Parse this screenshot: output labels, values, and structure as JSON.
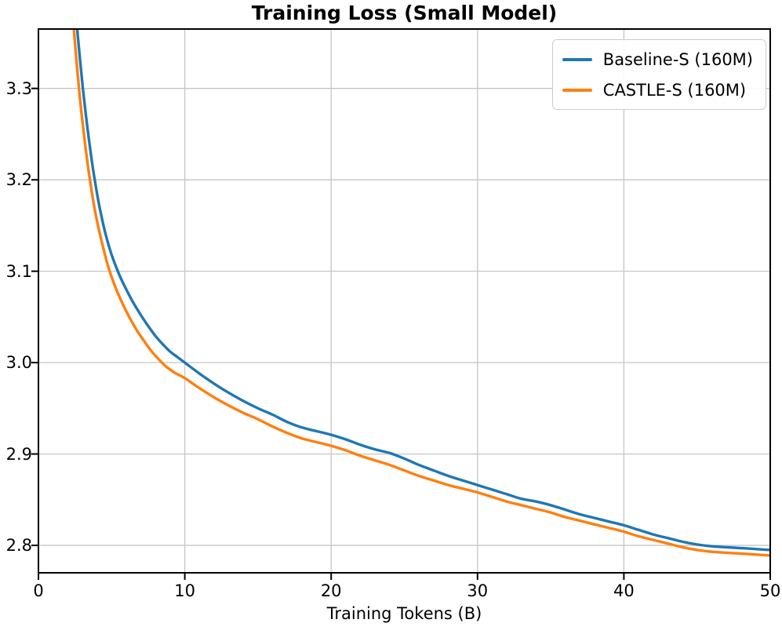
{
  "figure": {
    "title": "Training Loss (Small Model)",
    "xlabel": "Training Tokens (B)"
  },
  "chart_data": {
    "type": "line",
    "title": "Training Loss (Small Model)",
    "xlabel": "Training Tokens (B)",
    "ylabel": "",
    "xlim": [
      0,
      50
    ],
    "ylim": [
      2.77,
      3.365
    ],
    "xticks": [
      0,
      10,
      20,
      30,
      40,
      50
    ],
    "xtick_labels": [
      "0",
      "10",
      "20",
      "30",
      "40",
      "50"
    ],
    "yticks": [
      2.8,
      2.9,
      3.0,
      3.1,
      3.2,
      3.3
    ],
    "ytick_labels": [
      "2.8",
      "2.9",
      "3.0",
      "3.1",
      "3.2",
      "3.3"
    ],
    "grid": true,
    "grid_color": "#c6c6c6",
    "spine_color": "#000000",
    "legend_position": "upper right",
    "series": [
      {
        "name": "Baseline-S (160M)",
        "color": "#1f77b4",
        "x": [
          2.65,
          2.85,
          3.05,
          3.25,
          3.45,
          3.7,
          3.95,
          4.2,
          4.6,
          5.0,
          5.5,
          6.0,
          6.5,
          7.0,
          7.5,
          8.0,
          8.5,
          9.0,
          9.5,
          10,
          11,
          12,
          13,
          14,
          15,
          16,
          17,
          18,
          19,
          20,
          21,
          22,
          23,
          24,
          25,
          26,
          27,
          28,
          29,
          30,
          31,
          32,
          33,
          34,
          35,
          36,
          37,
          38,
          39,
          40,
          41,
          42,
          43,
          44,
          45,
          46,
          47,
          48,
          49,
          50
        ],
        "y": [
          3.365,
          3.33,
          3.298,
          3.27,
          3.244,
          3.215,
          3.19,
          3.168,
          3.14,
          3.118,
          3.097,
          3.08,
          3.065,
          3.052,
          3.04,
          3.029,
          3.02,
          3.012,
          3.006,
          3.0,
          2.988,
          2.977,
          2.967,
          2.958,
          2.95,
          2.943,
          2.935,
          2.929,
          2.925,
          2.921,
          2.916,
          2.91,
          2.905,
          2.901,
          2.895,
          2.888,
          2.882,
          2.876,
          2.871,
          2.866,
          2.861,
          2.856,
          2.851,
          2.848,
          2.844,
          2.839,
          2.834,
          2.83,
          2.826,
          2.822,
          2.817,
          2.812,
          2.808,
          2.804,
          2.801,
          2.799,
          2.798,
          2.797,
          2.796,
          2.795
        ]
      },
      {
        "name": "CASTLE-S (160M)",
        "color": "#ff7f0e",
        "x": [
          2.42,
          2.6,
          2.78,
          2.95,
          3.15,
          3.4,
          3.65,
          3.9,
          4.3,
          4.75,
          5.2,
          5.7,
          6.2,
          6.7,
          7.2,
          7.7,
          8.2,
          8.7,
          9.3,
          10,
          11,
          12,
          13,
          14,
          15,
          16,
          17,
          18,
          19,
          20,
          21,
          22,
          23,
          24,
          25,
          26,
          27,
          28,
          29,
          30,
          31,
          32,
          33,
          34,
          35,
          36,
          37,
          38,
          39,
          40,
          41,
          42,
          43,
          44,
          45,
          46,
          47,
          48,
          49,
          50
        ],
        "y": [
          3.365,
          3.33,
          3.298,
          3.272,
          3.244,
          3.213,
          3.186,
          3.163,
          3.134,
          3.106,
          3.085,
          3.066,
          3.05,
          3.036,
          3.024,
          3.013,
          3.004,
          2.996,
          2.989,
          2.983,
          2.972,
          2.962,
          2.953,
          2.945,
          2.938,
          2.93,
          2.923,
          2.917,
          2.913,
          2.909,
          2.904,
          2.898,
          2.893,
          2.888,
          2.882,
          2.876,
          2.871,
          2.866,
          2.862,
          2.858,
          2.853,
          2.848,
          2.844,
          2.84,
          2.836,
          2.831,
          2.827,
          2.823,
          2.819,
          2.815,
          2.81,
          2.806,
          2.802,
          2.798,
          2.795,
          2.793,
          2.792,
          2.791,
          2.79,
          2.789
        ]
      }
    ]
  }
}
